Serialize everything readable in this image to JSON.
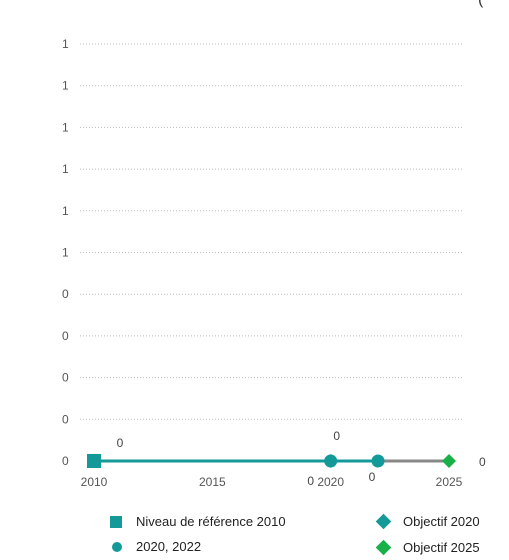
{
  "corner_text": "(",
  "chart_data": {
    "type": "line",
    "x_ticks": [
      "2010",
      "2015",
      "2020",
      "2025"
    ],
    "y_tick_labels": [
      "0",
      "0",
      "0",
      "0",
      "0",
      "1",
      "1",
      "1",
      "1",
      "1",
      "1"
    ],
    "xlim": [
      2010,
      2025
    ],
    "grid": true,
    "legend_position": "bottom",
    "series": [
      {
        "name": "Niveau de référence 2010",
        "marker": "square",
        "color": "#139a98",
        "points": [
          {
            "x": 2010,
            "y": 0,
            "label": "0"
          }
        ]
      },
      {
        "name": "2020, 2022",
        "marker": "circle",
        "color": "#139a98",
        "points": [
          {
            "x": 2020,
            "y": 0,
            "label": "0"
          },
          {
            "x": 2022,
            "y": 0,
            "label": "0"
          }
        ]
      },
      {
        "name": "Objectif 2020",
        "marker": "diamond",
        "color": "#139a98",
        "points": [
          {
            "x": 2020,
            "y": 0,
            "label": "0"
          }
        ]
      },
      {
        "name": "Objectif 2025",
        "marker": "diamond",
        "color": "#19b04a",
        "points": [
          {
            "x": 2025,
            "y": 0,
            "label": "0"
          }
        ]
      }
    ],
    "lines": [
      {
        "from": 2010,
        "to": 2022,
        "color": "#139a98"
      },
      {
        "from": 2022,
        "to": 2025,
        "color": "#888888"
      }
    ]
  }
}
